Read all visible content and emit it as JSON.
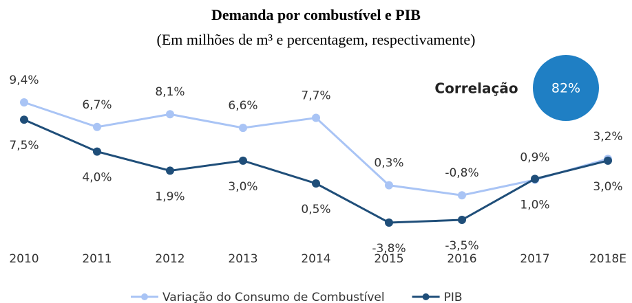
{
  "chart_data": {
    "type": "line",
    "title": "Demanda por combustível e PIB",
    "subtitle": "(Em milhões de m³ e percentagem, respectivamente)",
    "categories": [
      "2010",
      "2011",
      "2012",
      "2013",
      "2014",
      "2015",
      "2016",
      "2017",
      "2018E"
    ],
    "series": [
      {
        "name": "Variação do Consumo de Combustível",
        "color": "#a9c4f5",
        "values": [
          9.4,
          6.7,
          8.1,
          6.6,
          7.7,
          0.3,
          -0.8,
          0.9,
          3.2
        ],
        "value_labels": [
          "9,4%",
          "6,7%",
          "8,1%",
          "6,6%",
          "7,7%",
          "0,3%",
          "-0,8%",
          "0,9%",
          "3,2%"
        ]
      },
      {
        "name": "PIB",
        "color": "#1f4e79",
        "values": [
          7.5,
          4.0,
          1.9,
          3.0,
          0.5,
          -3.8,
          -3.5,
          1.0,
          3.0
        ],
        "value_labels": [
          "7,5%",
          "4,0%",
          "1,9%",
          "3,0%",
          "0,5%",
          "-3,8%",
          "-3,5%",
          "1,0%",
          "3,0%"
        ]
      }
    ],
    "annotation": {
      "label": "Correlação",
      "value_label": "82%",
      "color": "#1f7fc4"
    }
  }
}
